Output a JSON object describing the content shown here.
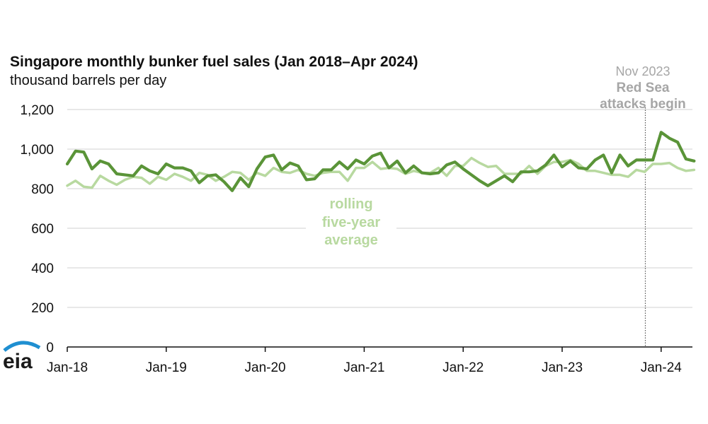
{
  "chart_data": {
    "type": "line",
    "title": "Singapore monthly bunker fuel sales (Jan 2018–Apr 2024)",
    "subtitle": "thousand barrels per day",
    "ylim": [
      0,
      1200
    ],
    "yticks": [
      0,
      200,
      400,
      600,
      800,
      1000,
      1200
    ],
    "ytick_labels": [
      "0",
      "200",
      "400",
      "600",
      "800",
      "1,000",
      "1,200"
    ],
    "xtick_labels": [
      "Jan-18",
      "Jan-19",
      "Jan-20",
      "Jan-21",
      "Jan-22",
      "Jan-23",
      "Jan-24"
    ],
    "x_start": "Jan 2018",
    "x_end": "Apr 2024",
    "series": [
      {
        "name": "monthly bunker fuel sales",
        "color": "#5a9438",
        "values": [
          925,
          990,
          985,
          900,
          940,
          925,
          875,
          870,
          865,
          915,
          890,
          875,
          925,
          905,
          905,
          890,
          830,
          865,
          870,
          835,
          790,
          855,
          810,
          900,
          960,
          970,
          895,
          930,
          915,
          845,
          850,
          895,
          895,
          935,
          900,
          945,
          925,
          965,
          980,
          905,
          940,
          880,
          915,
          880,
          875,
          880,
          920,
          935,
          900,
          870,
          840,
          815,
          840,
          865,
          835,
          885,
          885,
          890,
          920,
          970,
          910,
          940,
          905,
          900,
          945,
          970,
          880,
          970,
          915,
          945,
          945,
          945,
          1085,
          1055,
          1035,
          950,
          940
        ]
      },
      {
        "name": "rolling five-year average",
        "color": "#b8d9a0",
        "values": [
          815,
          840,
          810,
          805,
          865,
          840,
          820,
          845,
          860,
          855,
          825,
          860,
          845,
          875,
          860,
          840,
          880,
          870,
          840,
          860,
          885,
          880,
          845,
          880,
          865,
          905,
          885,
          880,
          895,
          875,
          865,
          880,
          885,
          885,
          840,
          905,
          905,
          935,
          900,
          905,
          900,
          875,
          890,
          880,
          880,
          905,
          865,
          915,
          915,
          955,
          930,
          910,
          915,
          875,
          875,
          875,
          915,
          875,
          915,
          935,
          935,
          945,
          925,
          890,
          890,
          880,
          870,
          870,
          860,
          895,
          885,
          925,
          925,
          930,
          905,
          890,
          895
        ]
      },
      {
        "name": "Nov 2023 marker",
        "color": "#555555",
        "marker_month": "Nov 2023"
      }
    ],
    "annotations": {
      "event_line1": "Nov 2023",
      "event_line2": "Red Sea",
      "event_line3": "attacks begin",
      "avg_line1": "rolling",
      "avg_line2": "five-year",
      "avg_line3": "average"
    }
  },
  "logo_text": "eia"
}
